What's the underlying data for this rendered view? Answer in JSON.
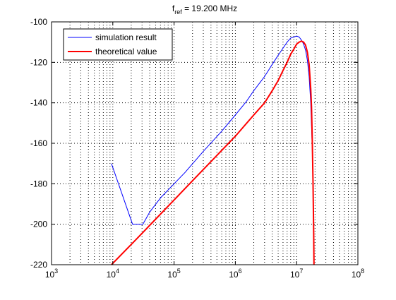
{
  "chart_data": {
    "type": "line",
    "title_main": "f",
    "title_sub": "ref",
    "title_rest": " = 19.200 MHz",
    "xlabel": "",
    "ylabel": "",
    "xscale": "log",
    "xlim": [
      1000,
      100000000
    ],
    "ylim": [
      -220,
      -100
    ],
    "grid": true,
    "minor_grid_x": true,
    "legend_position": "top-left",
    "x_ticks": [
      {
        "value": 1000,
        "base": "10",
        "exp": "3"
      },
      {
        "value": 10000,
        "base": "10",
        "exp": "4"
      },
      {
        "value": 100000,
        "base": "10",
        "exp": "5"
      },
      {
        "value": 1000000,
        "base": "10",
        "exp": "6"
      },
      {
        "value": 10000000,
        "base": "10",
        "exp": "7"
      },
      {
        "value": 100000000,
        "base": "10",
        "exp": "8"
      }
    ],
    "y_ticks": [
      {
        "value": -100,
        "label": "-100"
      },
      {
        "value": -120,
        "label": "-120"
      },
      {
        "value": -140,
        "label": "-140"
      },
      {
        "value": -160,
        "label": "-160"
      },
      {
        "value": -180,
        "label": "-180"
      },
      {
        "value": -200,
        "label": "-200"
      },
      {
        "value": -220,
        "label": "-220"
      }
    ],
    "series": [
      {
        "name": "simulation result",
        "color": "#0000ff",
        "width": 1,
        "x": [
          9500,
          21000,
          31000,
          40000,
          60000,
          100000,
          150000,
          300000,
          600000,
          1000000,
          1500000,
          2000000,
          3000000,
          4000000,
          5000000,
          6000000,
          7000000,
          8000000,
          9000000,
          10000000,
          11000000,
          12000000,
          13000000,
          14000000,
          15000000,
          16000000,
          17000000,
          18000000,
          18500000,
          19000000,
          19200000
        ],
        "y": [
          -170,
          -200,
          -200,
          -194,
          -187,
          -180,
          -174.5,
          -164,
          -154,
          -146,
          -139.5,
          -134,
          -127,
          -121,
          -116.5,
          -113,
          -110,
          -108,
          -107.5,
          -107,
          -107.5,
          -109,
          -111,
          -114,
          -119,
          -127,
          -140,
          -162,
          -180,
          -205,
          -220
        ]
      },
      {
        "name": "theoretical value",
        "color": "#ff0000",
        "width": 2,
        "x": [
          9500,
          20000,
          30000,
          50000,
          100000,
          200000,
          500000,
          1000000,
          2000000,
          3000000,
          4000000,
          5000000,
          6000000,
          7000000,
          8000000,
          9000000,
          10000000,
          11000000,
          12000000,
          13000000,
          14000000,
          15000000,
          16000000,
          17000000,
          17500000,
          18000000,
          18500000,
          19000000,
          19200000
        ],
        "y": [
          -220,
          -210,
          -204.5,
          -197.5,
          -188,
          -178.5,
          -166,
          -156.5,
          -146,
          -140,
          -134,
          -129,
          -124,
          -120,
          -116,
          -113.5,
          -111,
          -110,
          -109.5,
          -110,
          -111.5,
          -115,
          -121,
          -133,
          -142,
          -158,
          -178,
          -205,
          -220
        ]
      }
    ]
  }
}
